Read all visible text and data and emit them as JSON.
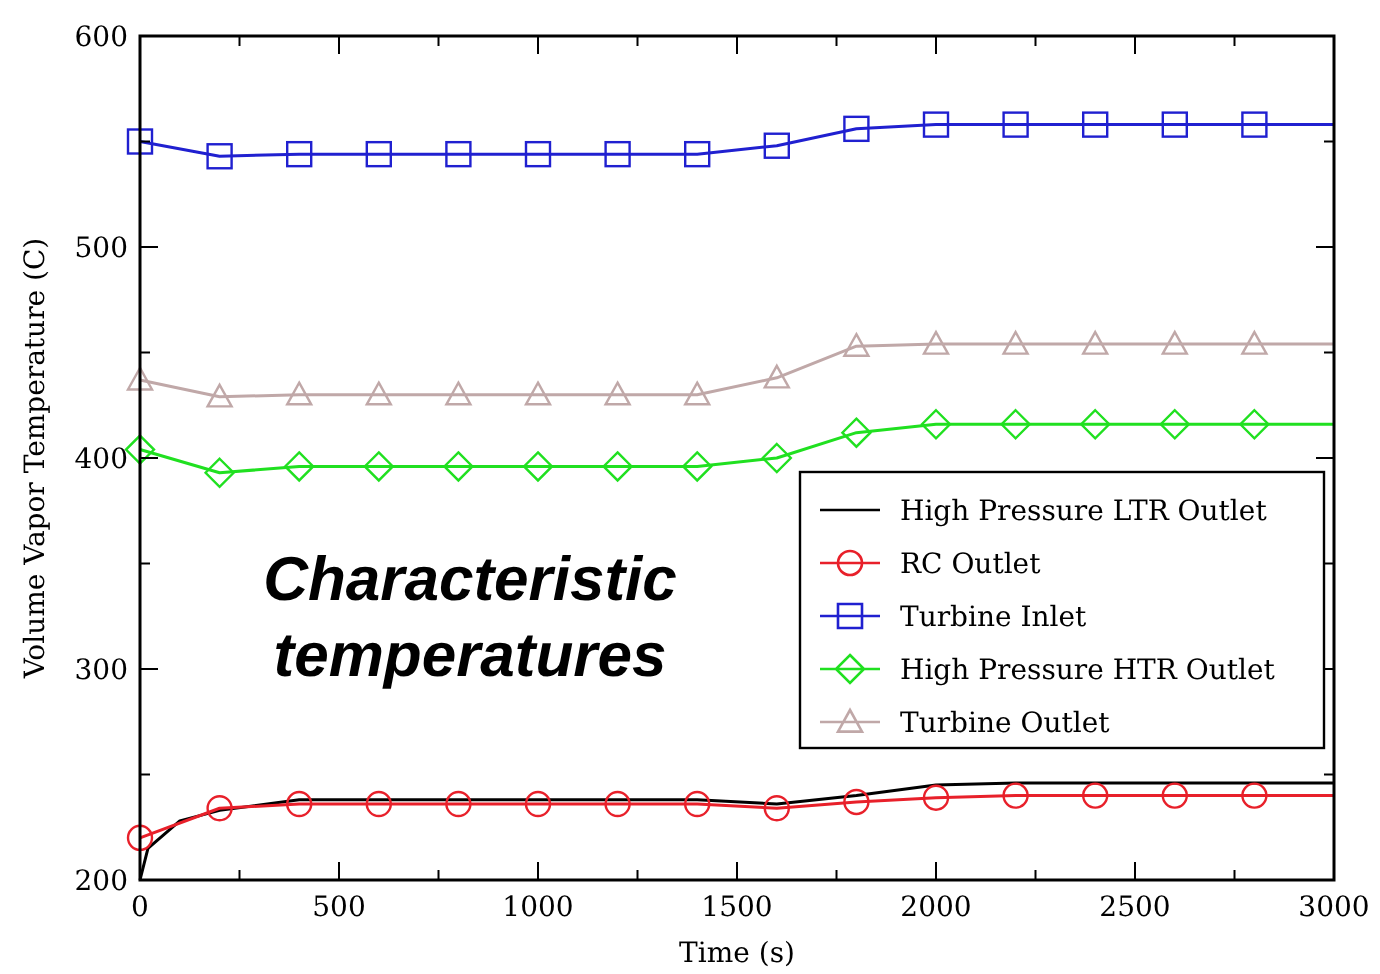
{
  "chart_data": {
    "type": "line",
    "xlabel": "Time (s)",
    "ylabel": "Volume Vapor Temperature (C)",
    "annotations": [
      "Characteristic temperatures"
    ],
    "xlim": [
      0,
      3000
    ],
    "ylim": [
      200,
      600
    ],
    "xticks": [
      0,
      {
        "value": 250,
        "label": null
      },
      500,
      {
        "value": 750,
        "label": null
      },
      1000,
      {
        "value": 1250,
        "label": null
      },
      1500,
      {
        "value": 1750,
        "label": null
      },
      2000,
      {
        "value": 2250,
        "label": null
      },
      2500,
      {
        "value": 2750,
        "label": null
      },
      3000
    ],
    "yticks": [
      200,
      {
        "value": 250,
        "label": null
      },
      300,
      {
        "value": 350,
        "label": null
      },
      400,
      {
        "value": 450,
        "label": null
      },
      500,
      {
        "value": 550,
        "label": null
      },
      600
    ],
    "grid": false,
    "legend": "right",
    "line_style": "solid",
    "series": [
      {
        "name": "High Pressure LTR Outlet",
        "color": "#000000",
        "marker": "none",
        "x": [
          0,
          20,
          100,
          200,
          400,
          600,
          800,
          1000,
          1200,
          1400,
          1600,
          1800,
          2000,
          2200,
          2400,
          2600,
          2800,
          3000
        ],
        "values": [
          200,
          215,
          228,
          233,
          238,
          238,
          238,
          238,
          238,
          238,
          236,
          240,
          245,
          246,
          246,
          246,
          246,
          246
        ]
      },
      {
        "name": "RC Outlet",
        "color": "#e8202a",
        "marker": "circle",
        "x": [
          0,
          200,
          400,
          600,
          800,
          1000,
          1200,
          1400,
          1600,
          1800,
          2000,
          2200,
          2400,
          2600,
          2800,
          3000
        ],
        "values": [
          220,
          234,
          236,
          236,
          236,
          236,
          236,
          236,
          234,
          237,
          239,
          240,
          240,
          240,
          240,
          240
        ]
      },
      {
        "name": "Turbine Inlet",
        "color": "#2020d0",
        "marker": "square",
        "x": [
          0,
          200,
          400,
          600,
          800,
          1000,
          1200,
          1400,
          1600,
          1800,
          2000,
          2200,
          2400,
          2600,
          2800,
          3000
        ],
        "values": [
          550,
          543,
          544,
          544,
          544,
          544,
          544,
          544,
          548,
          556,
          558,
          558,
          558,
          558,
          558,
          558
        ]
      },
      {
        "name": "High Pressure HTR Outlet",
        "color": "#20e020",
        "marker": "diamond",
        "x": [
          0,
          200,
          400,
          600,
          800,
          1000,
          1200,
          1400,
          1600,
          1800,
          2000,
          2200,
          2400,
          2600,
          2800,
          3000
        ],
        "values": [
          404,
          393,
          396,
          396,
          396,
          396,
          396,
          396,
          400,
          412,
          416,
          416,
          416,
          416,
          416,
          416
        ]
      },
      {
        "name": "Turbine Outlet",
        "color": "#c0a8a8",
        "marker": "triangle",
        "x": [
          0,
          200,
          400,
          600,
          800,
          1000,
          1200,
          1400,
          1600,
          1800,
          2000,
          2200,
          2400,
          2600,
          2800,
          3000
        ],
        "values": [
          437,
          429,
          430,
          430,
          430,
          430,
          430,
          430,
          438,
          453,
          454,
          454,
          454,
          454,
          454,
          454
        ]
      }
    ]
  }
}
